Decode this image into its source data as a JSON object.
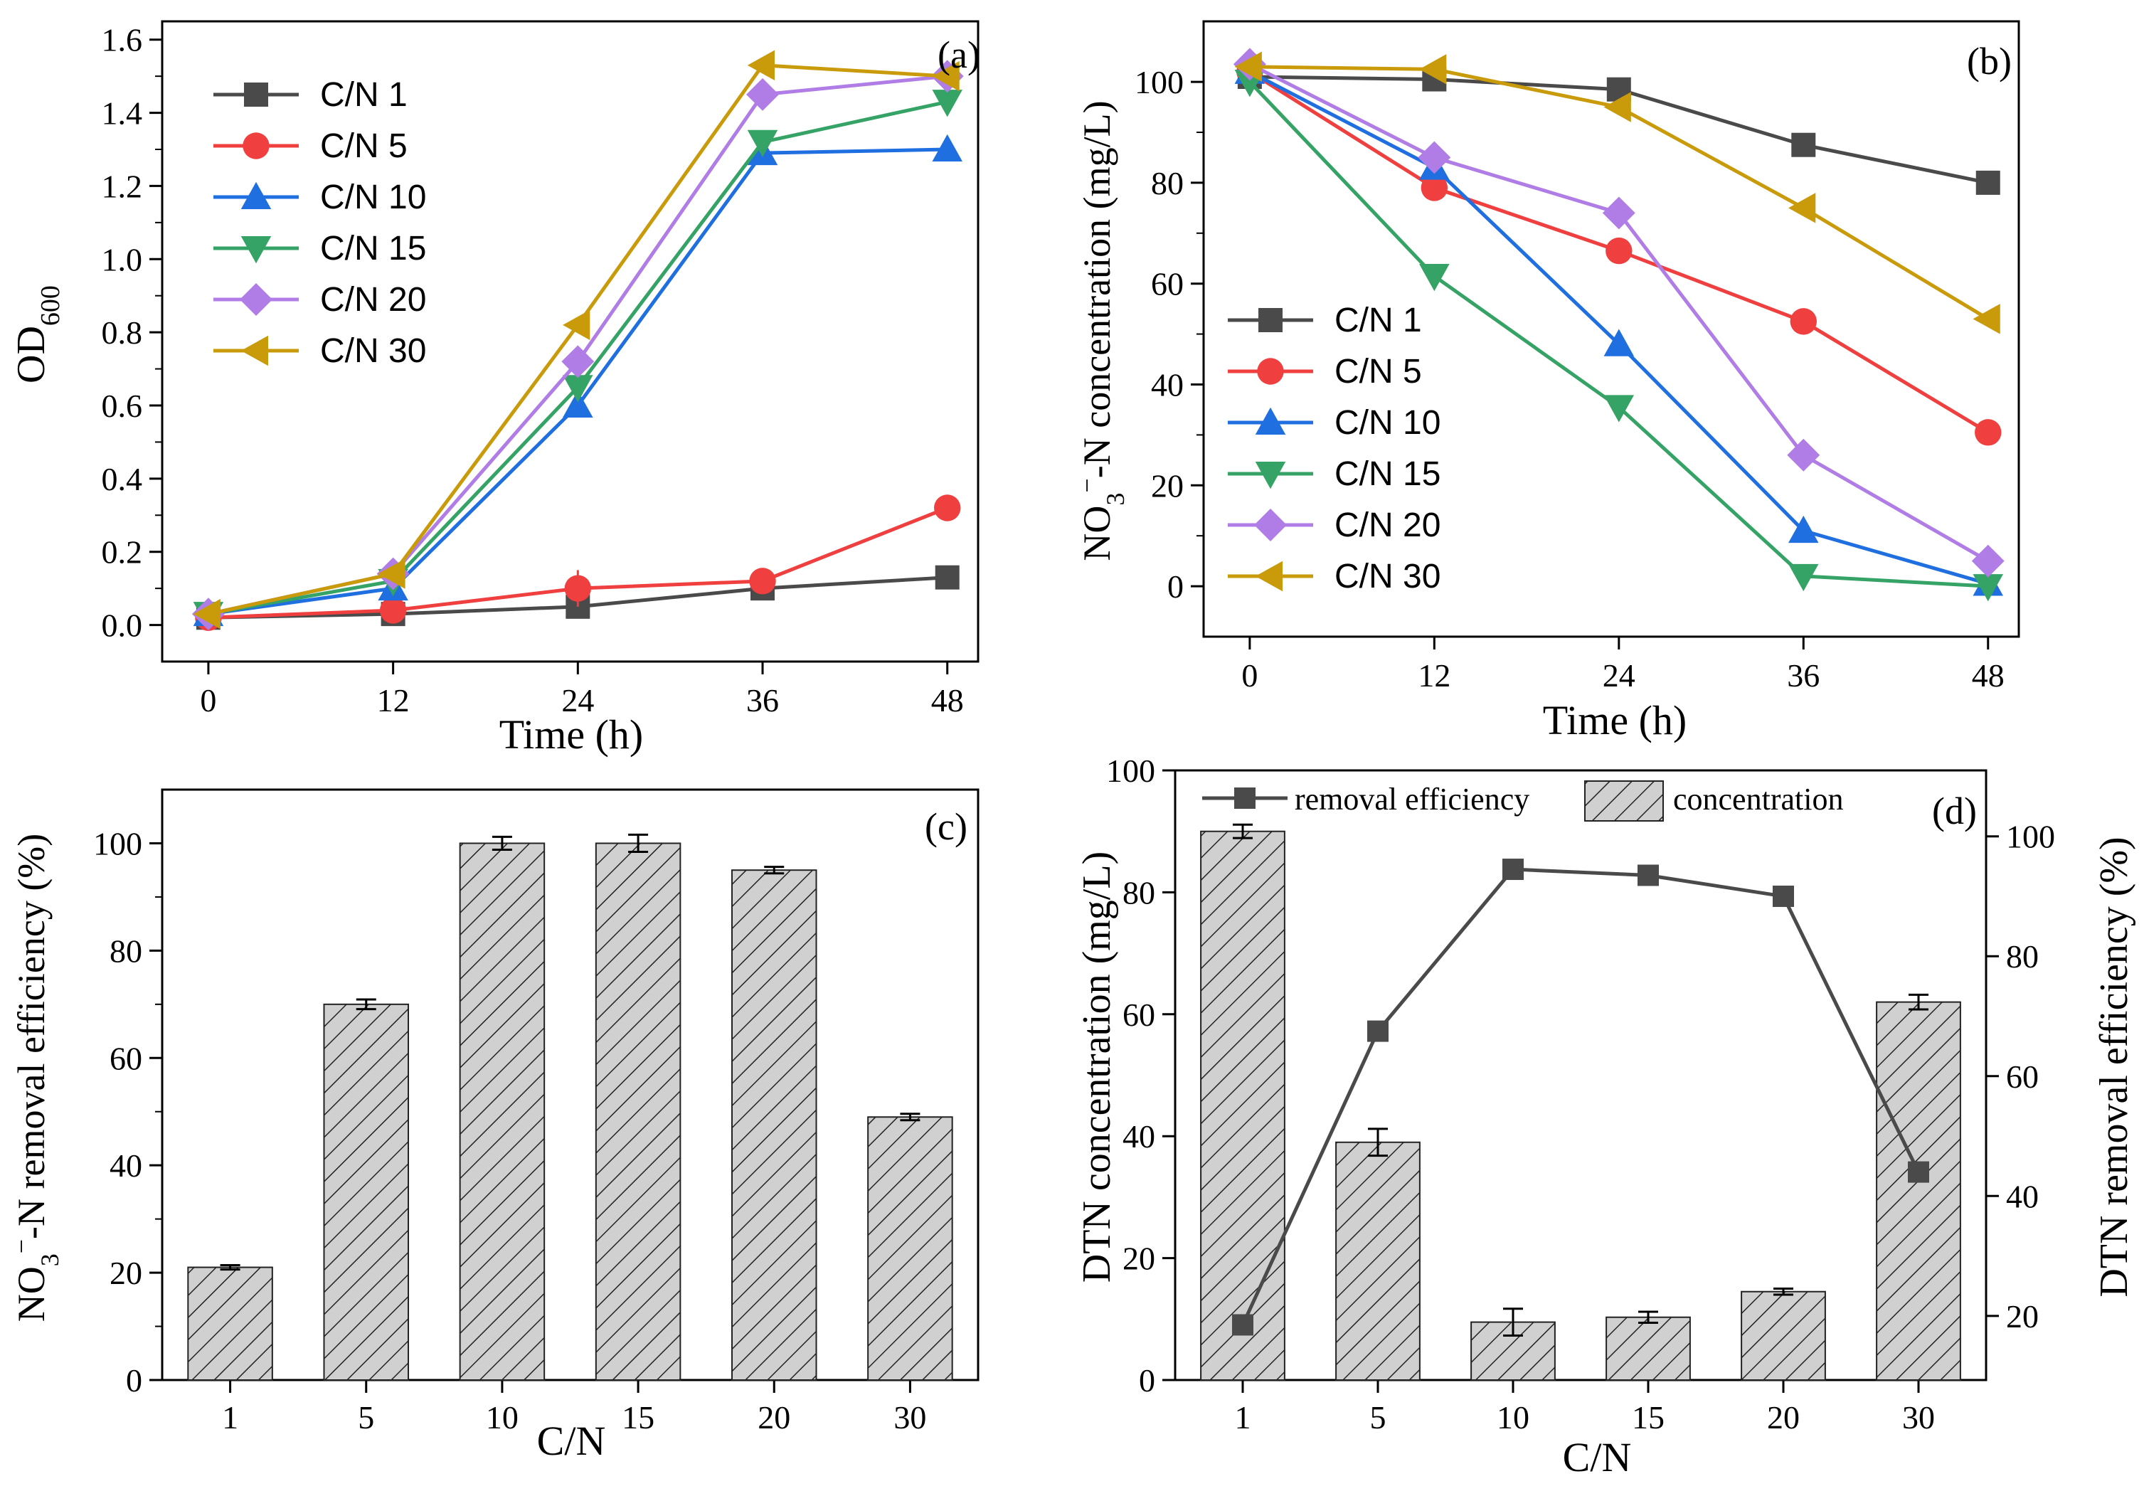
{
  "colors": {
    "CN1": "#4a4a4a",
    "CN5": "#ef3f3f",
    "CN10": "#1f6fe0",
    "CN15": "#35a365",
    "CN20": "#b07ce6",
    "CN30": "#c99a0a",
    "bar_fill": "#d0d0d0",
    "hatch": "#222222",
    "dark_line": "#4a4a4a"
  },
  "chart_data": [
    {
      "id": "a",
      "panel_label": "(a)",
      "type": "line",
      "xlabel": "Time (h)",
      "ylabel_main": "OD",
      "ylabel_sub": "600",
      "x": [
        0,
        12,
        24,
        36,
        48
      ],
      "x_ticks": [
        0,
        12,
        24,
        36,
        48
      ],
      "xlim": [
        -3,
        50
      ],
      "ylim": [
        -0.1,
        1.65
      ],
      "y_ticks": [
        0.0,
        0.2,
        0.4,
        0.6,
        0.8,
        1.0,
        1.2,
        1.4,
        1.6
      ],
      "legend_position": "top-left",
      "series": [
        {
          "name": "C/N 1",
          "marker": "square",
          "color_key": "CN1",
          "values": [
            0.02,
            0.03,
            0.05,
            0.1,
            0.13
          ],
          "errors": [
            0,
            0.01,
            0.01,
            0.01,
            0.01
          ]
        },
        {
          "name": "C/N 5",
          "marker": "circle",
          "color_key": "CN5",
          "values": [
            0.02,
            0.04,
            0.1,
            0.12,
            0.32
          ],
          "errors": [
            0,
            0.01,
            0.05,
            0.02,
            0.03
          ]
        },
        {
          "name": "C/N 10",
          "marker": "triangle-up",
          "color_key": "CN10",
          "values": [
            0.03,
            0.1,
            0.6,
            1.29,
            1.3
          ],
          "errors": [
            0,
            0.01,
            0.02,
            0.01,
            0.01
          ]
        },
        {
          "name": "C/N 15",
          "marker": "triangle-down",
          "color_key": "CN15",
          "values": [
            0.03,
            0.12,
            0.65,
            1.32,
            1.43
          ],
          "errors": [
            0,
            0.01,
            0.02,
            0.01,
            0.01
          ]
        },
        {
          "name": "C/N 20",
          "marker": "diamond",
          "color_key": "CN20",
          "values": [
            0.03,
            0.14,
            0.72,
            1.45,
            1.5
          ],
          "errors": [
            0,
            0.01,
            0.02,
            0.01,
            0.01
          ]
        },
        {
          "name": "C/N 30",
          "marker": "triangle-left",
          "color_key": "CN30",
          "values": [
            0.03,
            0.14,
            0.82,
            1.53,
            1.5
          ],
          "errors": [
            0,
            0.01,
            0.02,
            0.01,
            0.01
          ]
        }
      ]
    },
    {
      "id": "b",
      "panel_label": "(b)",
      "type": "line",
      "xlabel": "Time (h)",
      "ylabel_prefix": "NO",
      "ylabel_sub": "3",
      "ylabel_sup": "−",
      "ylabel_suffix": "-N concentration (mg/L)",
      "x": [
        0,
        12,
        24,
        36,
        48
      ],
      "x_ticks": [
        0,
        12,
        24,
        36,
        48
      ],
      "xlim": [
        -3,
        50
      ],
      "ylim": [
        -10,
        112
      ],
      "y_ticks": [
        0,
        20,
        40,
        60,
        80,
        100
      ],
      "legend_position": "bottom-left",
      "series": [
        {
          "name": "C/N 1",
          "marker": "square",
          "color_key": "CN1",
          "values": [
            101,
            100.5,
            98.5,
            87.5,
            80
          ]
        },
        {
          "name": "C/N 5",
          "marker": "circle",
          "color_key": "CN5",
          "values": [
            102,
            79,
            66.5,
            52.5,
            30.5
          ]
        },
        {
          "name": "C/N 10",
          "marker": "triangle-up",
          "color_key": "CN10",
          "values": [
            102,
            83,
            48,
            11,
            0.5
          ]
        },
        {
          "name": "C/N 15",
          "marker": "triangle-down",
          "color_key": "CN15",
          "values": [
            100,
            61.5,
            35.5,
            2,
            0
          ]
        },
        {
          "name": "C/N 20",
          "marker": "diamond",
          "color_key": "CN20",
          "values": [
            103.5,
            85,
            74,
            26,
            5
          ]
        },
        {
          "name": "C/N 30",
          "marker": "triangle-left",
          "color_key": "CN30",
          "values": [
            103,
            102.5,
            95,
            75,
            53
          ]
        }
      ]
    },
    {
      "id": "c",
      "panel_label": "(c)",
      "type": "bar",
      "xlabel": "C/N",
      "ylabel_prefix": "NO",
      "ylabel_sub": "3",
      "ylabel_sup": "−",
      "ylabel_suffix": "-N removal efficiency (%)",
      "categories": [
        "1",
        "5",
        "10",
        "15",
        "20",
        "30"
      ],
      "values": [
        21,
        70,
        100,
        100,
        95,
        49
      ],
      "errors": [
        0.4,
        0.9,
        1.2,
        1.6,
        0.6,
        0.6
      ],
      "ylim": [
        0,
        110
      ],
      "y_ticks": [
        0,
        20,
        40,
        60,
        80,
        100
      ]
    },
    {
      "id": "d",
      "panel_label": "(d)",
      "type": "bar+line",
      "xlabel": "C/N",
      "ylabel_left": "DTN concentration (mg/L)",
      "ylabel_right": "DTN removal efficiency (%)",
      "categories": [
        "1",
        "5",
        "10",
        "15",
        "20",
        "30"
      ],
      "bar_series": {
        "name": "concentration",
        "values": [
          90,
          39,
          9.5,
          10.3,
          14.5,
          62
        ],
        "errors": [
          1.1,
          2.2,
          2.2,
          0.9,
          0.5,
          1.2
        ]
      },
      "line_series": {
        "name": "removal efficiency",
        "values": [
          18.5,
          67.5,
          94.5,
          93.5,
          90,
          44
        ]
      },
      "ylim_left": [
        0,
        100
      ],
      "y_ticks_left": [
        0,
        20,
        40,
        60,
        80,
        100
      ],
      "ylim_right": [
        9.3,
        111
      ],
      "y_ticks_right": [
        20,
        40,
        60,
        80,
        100
      ],
      "legend_position": "top"
    }
  ]
}
